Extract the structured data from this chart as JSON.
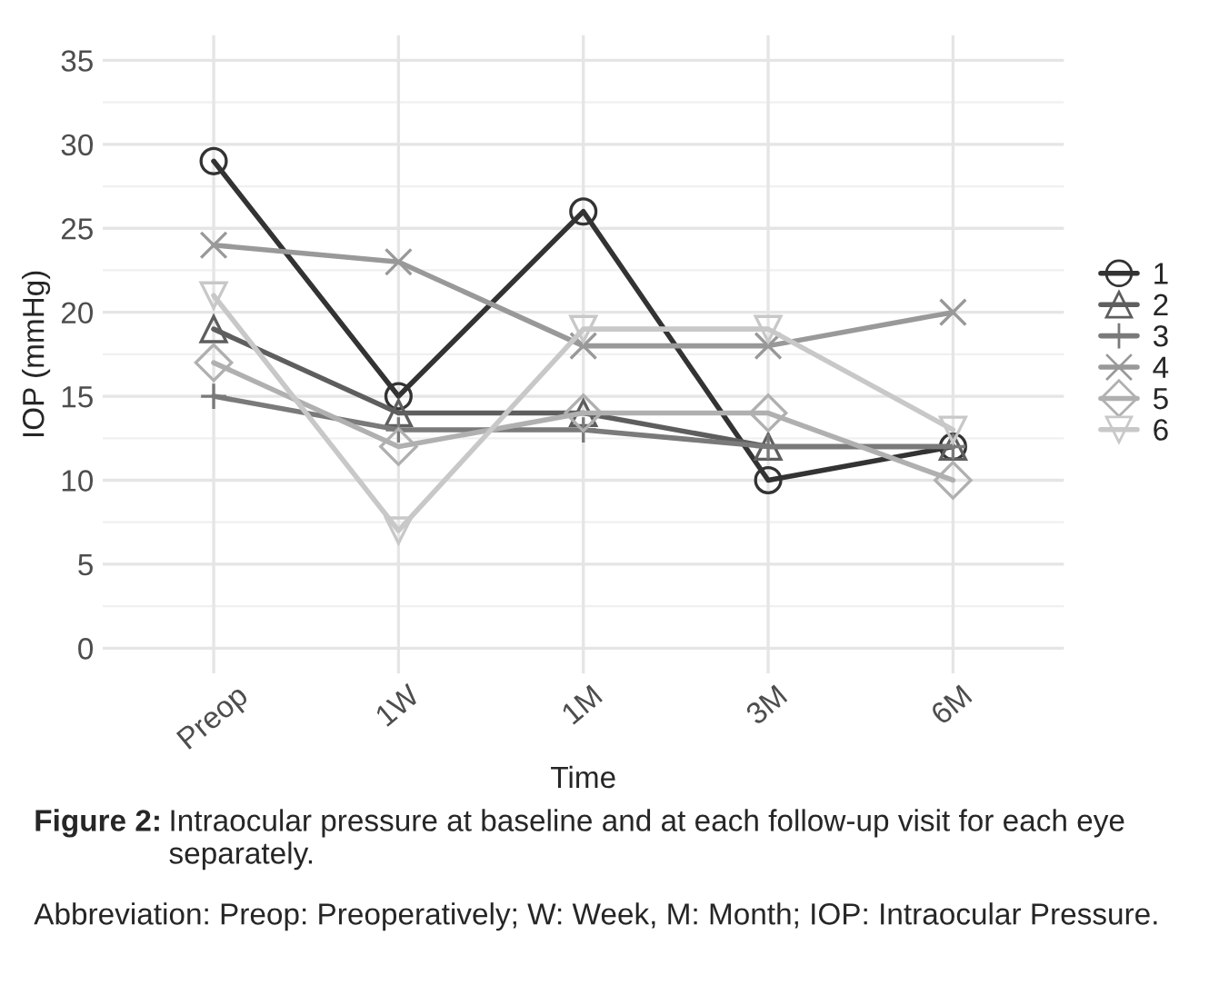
{
  "chart_data": {
    "type": "line",
    "xlabel": "Time",
    "ylabel": "IOP (mmHg)",
    "categories": [
      "Preop",
      "1W",
      "1M",
      "3M",
      "6M"
    ],
    "series": [
      {
        "name": "1",
        "color": "#333333",
        "marker": "circle",
        "values": [
          29,
          15,
          26,
          10,
          12
        ]
      },
      {
        "name": "2",
        "color": "#5e5e5e",
        "marker": "triangle",
        "values": [
          19,
          14,
          14,
          12,
          12
        ]
      },
      {
        "name": "3",
        "color": "#7a7a7a",
        "marker": "plus",
        "values": [
          15,
          13,
          13,
          12,
          12
        ]
      },
      {
        "name": "4",
        "color": "#999999",
        "marker": "cross",
        "values": [
          24,
          23,
          18,
          18,
          20
        ]
      },
      {
        "name": "5",
        "color": "#b0b0b0",
        "marker": "diamond",
        "values": [
          17,
          12,
          14,
          14,
          10
        ]
      },
      {
        "name": "6",
        "color": "#c8c8c8",
        "marker": "triangle_down",
        "values": [
          21,
          7,
          19,
          19,
          13
        ]
      }
    ],
    "ylim": [
      -1.5,
      36.5
    ],
    "yticks": [
      0,
      5,
      10,
      15,
      20,
      25,
      30,
      35
    ],
    "grid": true,
    "legend": "right",
    "line_style": "solid",
    "annotations": [
      "Figure 2:",
      "Intraocular pressure at baseline and at each follow-up visit for each eye separately.",
      "Abbreviation: Preop: Preoperatively; W: Week, M: Month; IOP: Intraocular Pressure."
    ]
  }
}
